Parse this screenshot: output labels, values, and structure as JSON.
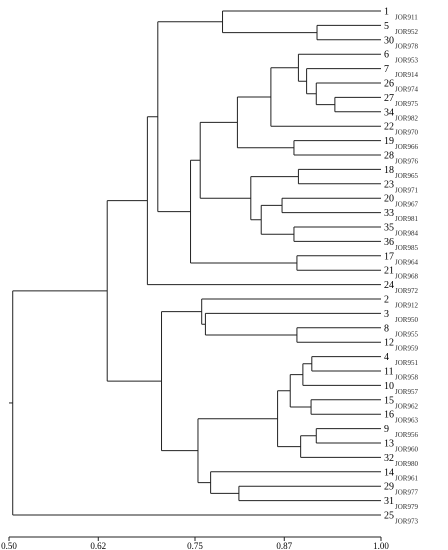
{
  "chart_data": {
    "type": "dendrogram",
    "xlabel": "",
    "ylabel": "",
    "xlim": [
      0.5,
      1.0
    ],
    "x_ticks": [
      {
        "value": 0.5,
        "label": "0.50"
      },
      {
        "value": 0.62,
        "label": "0.62"
      },
      {
        "value": 0.75,
        "label": "0.75"
      },
      {
        "value": 0.87,
        "label": "0.87"
      },
      {
        "value": 1.0,
        "label": "1.00"
      }
    ],
    "leaves": [
      {
        "id": "L1",
        "num": "1",
        "name": "JOR911"
      },
      {
        "id": "L5",
        "num": "5",
        "name": "JOR952"
      },
      {
        "id": "L30",
        "num": "30",
        "name": "JOR978"
      },
      {
        "id": "L6",
        "num": "6",
        "name": "JOR953"
      },
      {
        "id": "L7",
        "num": "7",
        "name": "JOR914"
      },
      {
        "id": "L26",
        "num": "26",
        "name": "JOR974"
      },
      {
        "id": "L27",
        "num": "27",
        "name": "JOR975"
      },
      {
        "id": "L34",
        "num": "34",
        "name": "JOR982"
      },
      {
        "id": "L22",
        "num": "22",
        "name": "JOR970"
      },
      {
        "id": "L19",
        "num": "19",
        "name": "JOR966"
      },
      {
        "id": "L28",
        "num": "28",
        "name": "JOR976"
      },
      {
        "id": "L18",
        "num": "18",
        "name": "JOR965"
      },
      {
        "id": "L23",
        "num": "23",
        "name": "JOR971"
      },
      {
        "id": "L20",
        "num": "20",
        "name": "JOR967"
      },
      {
        "id": "L33",
        "num": "33",
        "name": "JOR981"
      },
      {
        "id": "L35",
        "num": "35",
        "name": "JOR984"
      },
      {
        "id": "L36",
        "num": "36",
        "name": "JOR985"
      },
      {
        "id": "L17",
        "num": "17",
        "name": "JOR964"
      },
      {
        "id": "L21",
        "num": "21",
        "name": "JOR968"
      },
      {
        "id": "L24",
        "num": "24",
        "name": "JOR972"
      },
      {
        "id": "L2",
        "num": "2",
        "name": "JOR912"
      },
      {
        "id": "L3",
        "num": "3",
        "name": "JOR950"
      },
      {
        "id": "L8",
        "num": "8",
        "name": "JOR955"
      },
      {
        "id": "L12",
        "num": "12",
        "name": "JOR959"
      },
      {
        "id": "L4",
        "num": "4",
        "name": "JOR951"
      },
      {
        "id": "L11",
        "num": "11",
        "name": "JOR958"
      },
      {
        "id": "L10",
        "num": "10",
        "name": "JOR957"
      },
      {
        "id": "L15",
        "num": "15",
        "name": "JOR962"
      },
      {
        "id": "L16",
        "num": "16",
        "name": "JOR963"
      },
      {
        "id": "L9",
        "num": "9",
        "name": "JOR956"
      },
      {
        "id": "L13",
        "num": "13",
        "name": "JOR960"
      },
      {
        "id": "L32",
        "num": "32",
        "name": "JOR980"
      },
      {
        "id": "L14",
        "num": "14",
        "name": "JOR961"
      },
      {
        "id": "L29",
        "num": "29",
        "name": "JOR977"
      },
      {
        "id": "L31",
        "num": "31",
        "name": "JOR979"
      },
      {
        "id": "L25",
        "num": "25",
        "name": "JOR973"
      }
    ],
    "merges": [
      {
        "id": "c5_30",
        "children": [
          "L5",
          "L30"
        ],
        "height": 0.914
      },
      {
        "id": "c1_5_30",
        "children": [
          "L1",
          "c5_30"
        ],
        "height": 0.787
      },
      {
        "id": "c27_34",
        "children": [
          "L27",
          "L34"
        ],
        "height": 0.938
      },
      {
        "id": "c26_27_34",
        "children": [
          "L26",
          "c27_34"
        ],
        "height": 0.913
      },
      {
        "id": "c7_26",
        "children": [
          "L7",
          "c26_27_34"
        ],
        "height": 0.9
      },
      {
        "id": "c6_7",
        "children": [
          "L6",
          "c7_26"
        ],
        "height": 0.889
      },
      {
        "id": "c6_22",
        "children": [
          "c6_7",
          "L22"
        ],
        "height": 0.852
      },
      {
        "id": "c19_28",
        "children": [
          "L19",
          "L28"
        ],
        "height": 0.883
      },
      {
        "id": "c6_28",
        "children": [
          "c6_22",
          "c19_28"
        ],
        "height": 0.807
      },
      {
        "id": "c18_23",
        "children": [
          "L18",
          "L23"
        ],
        "height": 0.889
      },
      {
        "id": "c20_33",
        "children": [
          "L20",
          "L33"
        ],
        "height": 0.867
      },
      {
        "id": "c35_36",
        "children": [
          "L35",
          "L36"
        ],
        "height": 0.883
      },
      {
        "id": "c20_36",
        "children": [
          "c20_33",
          "c35_36"
        ],
        "height": 0.839
      },
      {
        "id": "c18_36",
        "children": [
          "c18_23",
          "c20_36"
        ],
        "height": 0.825
      },
      {
        "id": "c6_36",
        "children": [
          "c6_28",
          "c18_36"
        ],
        "height": 0.757
      },
      {
        "id": "c17_21",
        "children": [
          "L17",
          "L21"
        ],
        "height": 0.887
      },
      {
        "id": "c6_21",
        "children": [
          "c6_36",
          "c17_21"
        ],
        "height": 0.744
      },
      {
        "id": "c1_21",
        "children": [
          "c1_5_30",
          "c6_21"
        ],
        "height": 0.7
      },
      {
        "id": "c1_24",
        "children": [
          "c1_21",
          "L24"
        ],
        "height": 0.686
      },
      {
        "id": "c8_12",
        "children": [
          "L8",
          "L12"
        ],
        "height": 0.887
      },
      {
        "id": "c3_12",
        "children": [
          "L3",
          "c8_12"
        ],
        "height": 0.764
      },
      {
        "id": "c2_12",
        "children": [
          "L2",
          "c3_12"
        ],
        "height": 0.759
      },
      {
        "id": "c4_11",
        "children": [
          "L4",
          "L11"
        ],
        "height": 0.907
      },
      {
        "id": "c4_10",
        "children": [
          "c4_11",
          "L10"
        ],
        "height": 0.895
      },
      {
        "id": "c15_16",
        "children": [
          "L15",
          "L16"
        ],
        "height": 0.906
      },
      {
        "id": "c4_16",
        "children": [
          "c4_10",
          "c15_16"
        ],
        "height": 0.878
      },
      {
        "id": "c9_13",
        "children": [
          "L9",
          "L13"
        ],
        "height": 0.913
      },
      {
        "id": "c9_32",
        "children": [
          "c9_13",
          "L32"
        ],
        "height": 0.892
      },
      {
        "id": "c4_32",
        "children": [
          "c4_16",
          "c9_32"
        ],
        "height": 0.861
      },
      {
        "id": "c29_31",
        "children": [
          "L29",
          "L31"
        ],
        "height": 0.809
      },
      {
        "id": "c14_31",
        "children": [
          "L14",
          "c29_31"
        ],
        "height": 0.771
      },
      {
        "id": "c4_31",
        "children": [
          "c4_32",
          "c14_31"
        ],
        "height": 0.754
      },
      {
        "id": "c2_31",
        "children": [
          "c2_12",
          "c4_31"
        ],
        "height": 0.705
      },
      {
        "id": "c1_31",
        "children": [
          "c1_24",
          "c2_31"
        ],
        "height": 0.632
      },
      {
        "id": "root",
        "children": [
          "c1_31",
          "L25"
        ],
        "height": 0.505
      }
    ]
  }
}
